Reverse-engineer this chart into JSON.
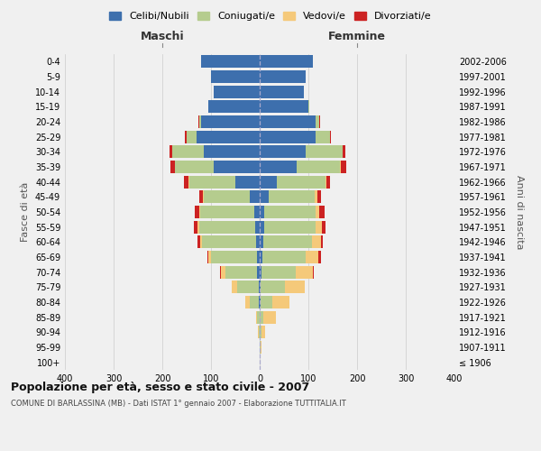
{
  "age_groups": [
    "100+",
    "95-99",
    "90-94",
    "85-89",
    "80-84",
    "75-79",
    "70-74",
    "65-69",
    "60-64",
    "55-59",
    "50-54",
    "45-49",
    "40-44",
    "35-39",
    "30-34",
    "25-29",
    "20-24",
    "15-19",
    "10-14",
    "5-9",
    "0-4"
  ],
  "birth_years": [
    "≤ 1906",
    "1907-1911",
    "1912-1916",
    "1917-1921",
    "1922-1926",
    "1927-1931",
    "1932-1936",
    "1937-1941",
    "1942-1946",
    "1947-1951",
    "1952-1956",
    "1957-1961",
    "1962-1966",
    "1967-1971",
    "1972-1976",
    "1977-1981",
    "1982-1986",
    "1987-1991",
    "1992-1996",
    "1997-2001",
    "2002-2006"
  ],
  "male": {
    "celibi": [
      0,
      0,
      0,
      0,
      1,
      2,
      5,
      5,
      8,
      10,
      12,
      20,
      50,
      95,
      115,
      130,
      120,
      105,
      95,
      100,
      120
    ],
    "coniugati": [
      0,
      0,
      2,
      5,
      20,
      45,
      65,
      95,
      110,
      115,
      110,
      95,
      95,
      80,
      65,
      20,
      5,
      0,
      0,
      0,
      0
    ],
    "vedovi": [
      0,
      0,
      1,
      3,
      8,
      10,
      10,
      5,
      5,
      3,
      2,
      1,
      1,
      0,
      0,
      0,
      0,
      0,
      0,
      0,
      0
    ],
    "divorziati": [
      0,
      0,
      0,
      0,
      0,
      1,
      2,
      3,
      5,
      8,
      10,
      8,
      10,
      8,
      5,
      3,
      1,
      0,
      0,
      0,
      0
    ]
  },
  "female": {
    "nubili": [
      0,
      0,
      0,
      0,
      1,
      2,
      4,
      5,
      7,
      10,
      10,
      18,
      35,
      75,
      95,
      115,
      115,
      100,
      90,
      95,
      110
    ],
    "coniugate": [
      0,
      1,
      3,
      8,
      25,
      50,
      70,
      90,
      100,
      105,
      105,
      95,
      100,
      90,
      75,
      30,
      8,
      1,
      0,
      0,
      0
    ],
    "vedove": [
      0,
      2,
      8,
      25,
      35,
      40,
      35,
      25,
      18,
      12,
      8,
      5,
      2,
      1,
      0,
      0,
      0,
      0,
      0,
      0,
      0
    ],
    "divorziate": [
      0,
      0,
      0,
      0,
      1,
      1,
      3,
      5,
      5,
      8,
      10,
      8,
      8,
      12,
      5,
      2,
      1,
      0,
      0,
      0,
      0
    ]
  },
  "colors": {
    "celibi": "#3d6fad",
    "coniugati": "#b5cc8e",
    "vedovi": "#f5c97a",
    "divorziati": "#cc2222"
  },
  "xlim": 400,
  "title": "Popolazione per età, sesso e stato civile - 2007",
  "subtitle": "COMUNE DI BARLASSINA (MB) - Dati ISTAT 1° gennaio 2007 - Elaborazione TUTTITALIA.IT",
  "ylabel": "Fasce di età",
  "right_label": "Anni di nascita",
  "maschi_label": "Maschi",
  "femmine_label": "Femmine",
  "legend_labels": [
    "Celibi/Nubili",
    "Coniugati/e",
    "Vedovi/e",
    "Divorziati/e"
  ],
  "bg_color": "#f0f0f0"
}
